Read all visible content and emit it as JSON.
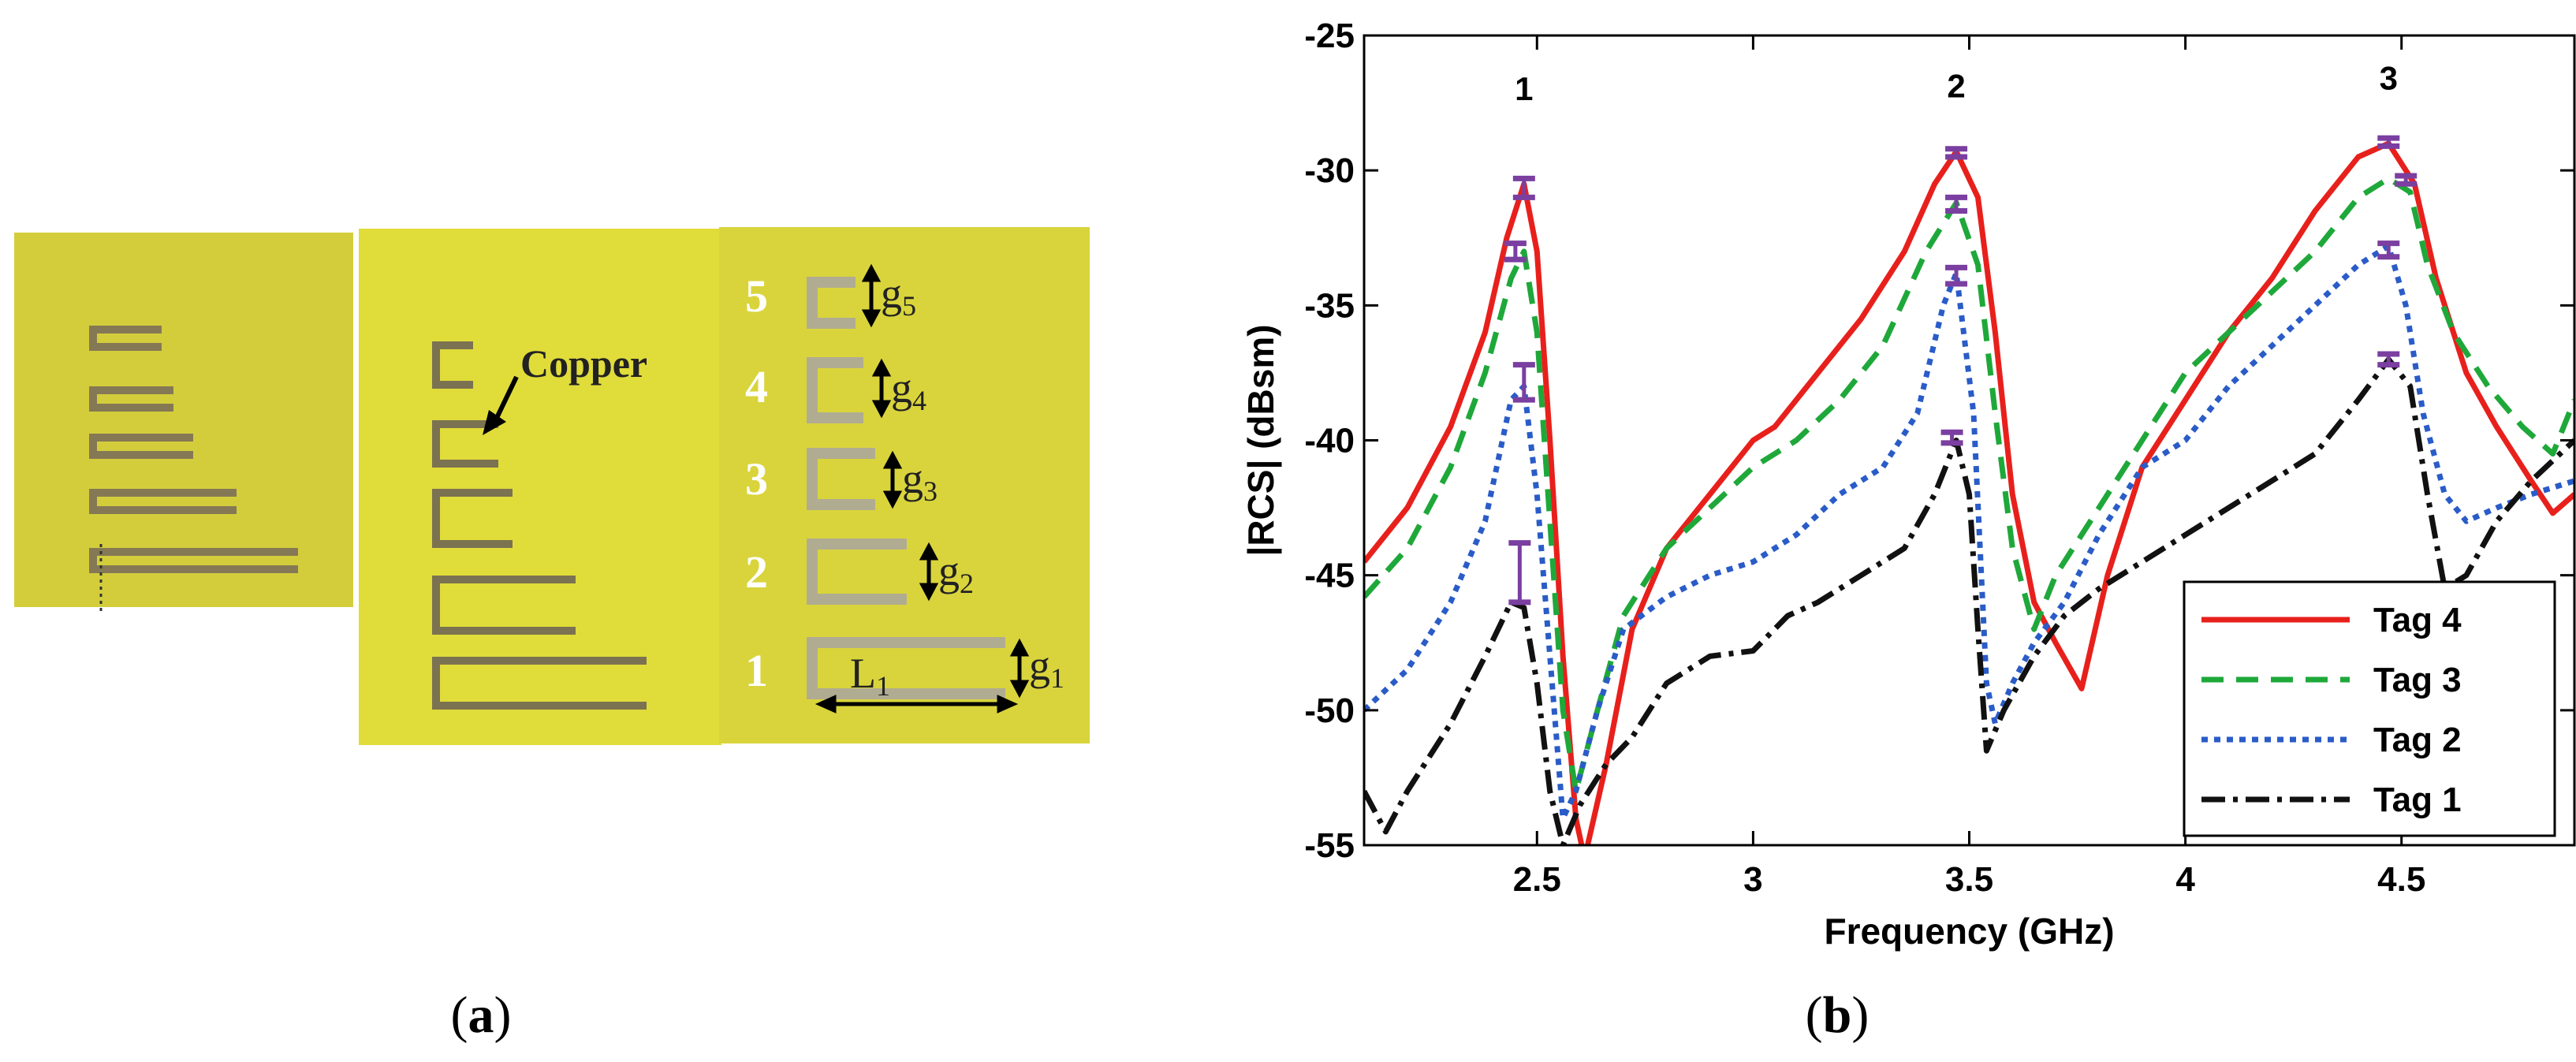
{
  "figure": {
    "caption_a": "a",
    "caption_b": "b"
  },
  "photo": {
    "copper_label": "Copper",
    "slot_numbers": [
      "5",
      "4",
      "3",
      "2",
      "1"
    ],
    "gap_labels": [
      {
        "base": "g",
        "sub": "5"
      },
      {
        "base": "g",
        "sub": "4"
      },
      {
        "base": "g",
        "sub": "3"
      },
      {
        "base": "g",
        "sub": "2"
      },
      {
        "base": "g",
        "sub": "1"
      }
    ],
    "length_label": {
      "base": "L",
      "sub": "1"
    },
    "colors": {
      "board": "#d8d23a",
      "board_dark": "#c9c22e",
      "copper": "#7e7350",
      "trace_light": "#a8a48c"
    }
  },
  "chart_data": {
    "type": "line",
    "title": "",
    "xlabel": "Frequency (GHz)",
    "ylabel": "|RCS| (dBsm)",
    "xlim": [
      2.1,
      4.9
    ],
    "ylim": [
      -55,
      -25
    ],
    "xticks": [
      2.5,
      3,
      3.5,
      4,
      4.5
    ],
    "xtick_labels": [
      "2.5",
      "3",
      "3.5",
      "4",
      "4.5"
    ],
    "yticks": [
      -55,
      -50,
      -45,
      -40,
      -35,
      -30,
      -25
    ],
    "ytick_labels": [
      "-55",
      "-50",
      "-45",
      "-40",
      "-35",
      "-30",
      "-25"
    ],
    "peak_annotations": [
      {
        "label": "1",
        "x": 2.47,
        "y": -27.4
      },
      {
        "label": "2",
        "x": 3.47,
        "y": -27.3
      },
      {
        "label": "3",
        "x": 4.47,
        "y": -27.0
      }
    ],
    "legend_position": "bottom-right",
    "series": [
      {
        "name": "Tag 4",
        "color": "#e8201c",
        "dash": "solid",
        "points": [
          [
            2.1,
            -44.5
          ],
          [
            2.2,
            -42.5
          ],
          [
            2.3,
            -39.5
          ],
          [
            2.38,
            -36
          ],
          [
            2.43,
            -32.5
          ],
          [
            2.47,
            -30.5
          ],
          [
            2.5,
            -33
          ],
          [
            2.53,
            -40
          ],
          [
            2.56,
            -48
          ],
          [
            2.59,
            -54
          ],
          [
            2.61,
            -55.5
          ],
          [
            2.66,
            -52
          ],
          [
            2.72,
            -47
          ],
          [
            2.8,
            -44
          ],
          [
            2.9,
            -42
          ],
          [
            3.0,
            -40
          ],
          [
            3.05,
            -39.5
          ],
          [
            3.15,
            -37.5
          ],
          [
            3.25,
            -35.5
          ],
          [
            3.35,
            -33
          ],
          [
            3.42,
            -30.5
          ],
          [
            3.47,
            -29.3
          ],
          [
            3.52,
            -31
          ],
          [
            3.56,
            -36
          ],
          [
            3.6,
            -42
          ],
          [
            3.65,
            -46
          ],
          [
            3.7,
            -47.5
          ],
          [
            3.76,
            -49.2
          ],
          [
            3.82,
            -45
          ],
          [
            3.9,
            -41
          ],
          [
            4.0,
            -38.5
          ],
          [
            4.1,
            -36
          ],
          [
            4.2,
            -34
          ],
          [
            4.3,
            -31.5
          ],
          [
            4.4,
            -29.5
          ],
          [
            4.47,
            -29
          ],
          [
            4.53,
            -30.5
          ],
          [
            4.58,
            -34
          ],
          [
            4.65,
            -37.5
          ],
          [
            4.72,
            -39.5
          ],
          [
            4.8,
            -41.5
          ],
          [
            4.85,
            -42.7
          ],
          [
            4.9,
            -42
          ]
        ]
      },
      {
        "name": "Tag 3",
        "color": "#1fa83a",
        "dash": "28,16",
        "points": [
          [
            2.1,
            -45.8
          ],
          [
            2.2,
            -44
          ],
          [
            2.3,
            -41
          ],
          [
            2.38,
            -37.5
          ],
          [
            2.44,
            -34
          ],
          [
            2.47,
            -33
          ],
          [
            2.5,
            -36
          ],
          [
            2.53,
            -43
          ],
          [
            2.56,
            -50
          ],
          [
            2.59,
            -53
          ],
          [
            2.64,
            -50
          ],
          [
            2.7,
            -46.5
          ],
          [
            2.8,
            -44
          ],
          [
            2.9,
            -42.5
          ],
          [
            3.0,
            -41
          ],
          [
            3.1,
            -40
          ],
          [
            3.2,
            -38.5
          ],
          [
            3.3,
            -36.5
          ],
          [
            3.4,
            -33
          ],
          [
            3.47,
            -31.2
          ],
          [
            3.52,
            -33.5
          ],
          [
            3.56,
            -39
          ],
          [
            3.6,
            -44
          ],
          [
            3.65,
            -47
          ],
          [
            3.7,
            -45
          ],
          [
            3.8,
            -42.5
          ],
          [
            3.9,
            -40
          ],
          [
            4.0,
            -37.5
          ],
          [
            4.1,
            -36
          ],
          [
            4.2,
            -34.5
          ],
          [
            4.3,
            -33
          ],
          [
            4.4,
            -31
          ],
          [
            4.47,
            -30.3
          ],
          [
            4.52,
            -30.8
          ],
          [
            4.56,
            -33.5
          ],
          [
            4.62,
            -36
          ],
          [
            4.7,
            -38
          ],
          [
            4.78,
            -39.5
          ],
          [
            4.85,
            -40.5
          ],
          [
            4.9,
            -38.5
          ]
        ]
      },
      {
        "name": "Tag 2",
        "color": "#2a5cc8",
        "dash": "8,8",
        "points": [
          [
            2.1,
            -50
          ],
          [
            2.2,
            -48.5
          ],
          [
            2.3,
            -46
          ],
          [
            2.38,
            -43
          ],
          [
            2.44,
            -38.5
          ],
          [
            2.47,
            -38
          ],
          [
            2.5,
            -42
          ],
          [
            2.53,
            -48
          ],
          [
            2.56,
            -54
          ],
          [
            2.59,
            -53
          ],
          [
            2.64,
            -50
          ],
          [
            2.7,
            -47
          ],
          [
            2.8,
            -45.8
          ],
          [
            2.9,
            -45
          ],
          [
            3.0,
            -44.5
          ],
          [
            3.1,
            -43.5
          ],
          [
            3.2,
            -42
          ],
          [
            3.3,
            -41
          ],
          [
            3.38,
            -39
          ],
          [
            3.44,
            -35
          ],
          [
            3.47,
            -33.8
          ],
          [
            3.51,
            -39
          ],
          [
            3.54,
            -49
          ],
          [
            3.56,
            -50.5
          ],
          [
            3.6,
            -49
          ],
          [
            3.65,
            -47.5
          ],
          [
            3.72,
            -46
          ],
          [
            3.8,
            -43.5
          ],
          [
            3.9,
            -41
          ],
          [
            4.0,
            -40
          ],
          [
            4.1,
            -38
          ],
          [
            4.2,
            -36.5
          ],
          [
            4.3,
            -35
          ],
          [
            4.4,
            -33.5
          ],
          [
            4.47,
            -32.8
          ],
          [
            4.51,
            -35
          ],
          [
            4.55,
            -39
          ],
          [
            4.6,
            -42
          ],
          [
            4.65,
            -43
          ],
          [
            4.72,
            -42.5
          ],
          [
            4.8,
            -42
          ],
          [
            4.9,
            -41.5
          ]
        ]
      },
      {
        "name": "Tag 1",
        "color": "#111111",
        "dash": "30,10,6,10",
        "points": [
          [
            2.1,
            -53
          ],
          [
            2.15,
            -54.5
          ],
          [
            2.2,
            -53
          ],
          [
            2.3,
            -50.5
          ],
          [
            2.38,
            -48
          ],
          [
            2.44,
            -46
          ],
          [
            2.47,
            -46.2
          ],
          [
            2.5,
            -49
          ],
          [
            2.53,
            -53
          ],
          [
            2.56,
            -55
          ],
          [
            2.6,
            -53.5
          ],
          [
            2.66,
            -52
          ],
          [
            2.72,
            -51
          ],
          [
            2.8,
            -49
          ],
          [
            2.9,
            -48
          ],
          [
            3.0,
            -47.8
          ],
          [
            3.08,
            -46.5
          ],
          [
            3.15,
            -46
          ],
          [
            3.25,
            -45
          ],
          [
            3.35,
            -44
          ],
          [
            3.42,
            -42
          ],
          [
            3.47,
            -40
          ],
          [
            3.5,
            -42
          ],
          [
            3.52,
            -47
          ],
          [
            3.54,
            -51.5
          ],
          [
            3.58,
            -50
          ],
          [
            3.65,
            -48
          ],
          [
            3.72,
            -46.5
          ],
          [
            3.8,
            -45.5
          ],
          [
            3.9,
            -44.5
          ],
          [
            4.0,
            -43.5
          ],
          [
            4.1,
            -42.5
          ],
          [
            4.2,
            -41.5
          ],
          [
            4.3,
            -40.5
          ],
          [
            4.4,
            -38.5
          ],
          [
            4.47,
            -37
          ],
          [
            4.52,
            -38
          ],
          [
            4.56,
            -42
          ],
          [
            4.6,
            -45.5
          ],
          [
            4.65,
            -45
          ],
          [
            4.72,
            -43
          ],
          [
            4.8,
            -41.5
          ],
          [
            4.9,
            -40
          ]
        ]
      }
    ],
    "error_bars": [
      {
        "x": 2.47,
        "low": -31.0,
        "high": -30.3,
        "color": "#7a3fa0"
      },
      {
        "x": 2.45,
        "low": -33.3,
        "high": -32.7,
        "color": "#7a3fa0"
      },
      {
        "x": 2.47,
        "low": -38.5,
        "high": -37.2,
        "color": "#7a3fa0"
      },
      {
        "x": 2.46,
        "low": -46.0,
        "high": -43.8,
        "color": "#7a3fa0"
      },
      {
        "x": 3.47,
        "low": -29.5,
        "high": -29.2,
        "color": "#7a3fa0"
      },
      {
        "x": 3.47,
        "low": -31.5,
        "high": -31.0,
        "color": "#7a3fa0"
      },
      {
        "x": 3.47,
        "low": -34.2,
        "high": -33.6,
        "color": "#7a3fa0"
      },
      {
        "x": 3.46,
        "low": -40.1,
        "high": -39.7,
        "color": "#7a3fa0"
      },
      {
        "x": 4.47,
        "low": -29.1,
        "high": -28.8,
        "color": "#7a3fa0"
      },
      {
        "x": 4.51,
        "low": -30.5,
        "high": -30.2,
        "color": "#7a3fa0"
      },
      {
        "x": 4.47,
        "low": -33.2,
        "high": -32.7,
        "color": "#7a3fa0"
      },
      {
        "x": 4.47,
        "low": -37.2,
        "high": -36.8,
        "color": "#7a3fa0"
      }
    ]
  }
}
